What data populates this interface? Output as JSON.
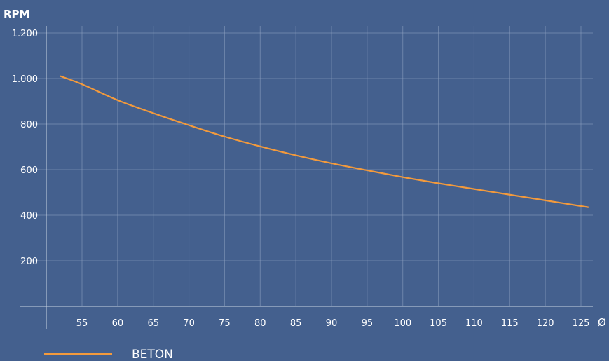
{
  "chart_data": {
    "type": "line",
    "ylabel": "RPM",
    "xlabel": "Ø",
    "ylim": [
      0,
      1200
    ],
    "y_ticks": [
      200,
      400,
      600,
      800,
      1000,
      1200
    ],
    "y_tick_labels": [
      "200",
      "400",
      "600",
      "800",
      "1.000",
      "1.200"
    ],
    "x_ticks": [
      55,
      60,
      65,
      70,
      75,
      80,
      85,
      90,
      95,
      100,
      105,
      110,
      115,
      120,
      125
    ],
    "x_tick_labels": [
      "55",
      "60",
      "65",
      "70",
      "75",
      "80",
      "85",
      "90",
      "95",
      "100",
      "105",
      "110",
      "115",
      "120",
      "125"
    ],
    "grid": true,
    "legend_position": "bottom-left",
    "series": [
      {
        "name": "BETON",
        "color": "#f39a3c",
        "x": [
          52,
          55,
          60,
          65,
          70,
          75,
          80,
          85,
          90,
          95,
          100,
          105,
          110,
          115,
          120,
          125,
          126
        ],
        "y": [
          1010,
          975,
          905,
          848,
          795,
          745,
          702,
          663,
          628,
          597,
          567,
          540,
          515,
          490,
          465,
          440,
          435
        ]
      }
    ]
  }
}
